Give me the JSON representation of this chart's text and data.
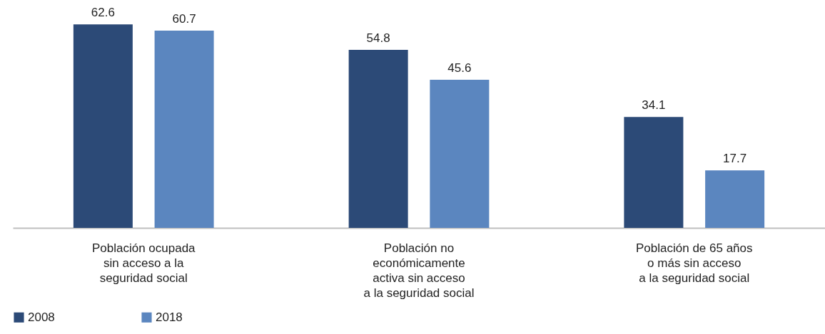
{
  "chart_data": {
    "type": "bar",
    "categories": [
      "Población ocupada\nsin acceso a la\nseguridad social",
      "Población no\neconómicamente\nactiva sin acceso\na la seguridad social",
      "Población de 65 años\no más sin acceso\na la seguridad social"
    ],
    "series": [
      {
        "name": "2008",
        "color": "#2c4a77",
        "values": [
          62.6,
          54.8,
          34.1
        ]
      },
      {
        "name": "2018",
        "color": "#5b86bf",
        "values": [
          60.7,
          45.6,
          17.7
        ]
      }
    ],
    "data_labels": true,
    "legend": "bottom",
    "grid": false,
    "tick_labels": "x"
  }
}
